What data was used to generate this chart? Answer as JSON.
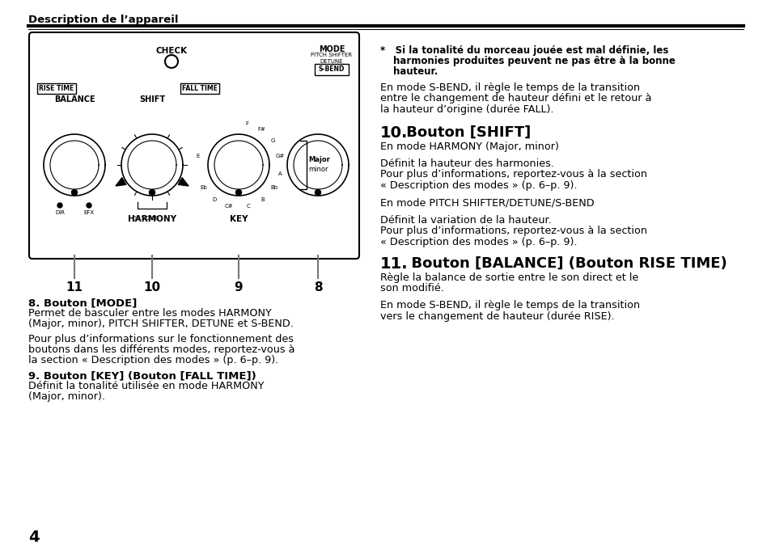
{
  "page_bg": "#ffffff",
  "text_color": "#000000",
  "header_text": "Description de l’appareil",
  "note_line1": "*   Si la tonalité du morceau jouée est mal définie, les",
  "note_line2": "harmonies produites peuvent ne pas être à la bonne",
  "note_line3": "hauteur.",
  "sbend_para": [
    "En mode S-BEND, il règle le temps de la transition",
    "entre le changement de hauteur défini et le retour à",
    "la hauteur d’origine (durée FALL)."
  ],
  "sec10_head_num": "10.",
  "sec10_head_rest": " Bouton [SHIFT]",
  "sec10_body": [
    "En mode HARMONY (Major, minor)",
    "",
    "Définit la hauteur des harmonies.",
    "Pour plus d’informations, reportez-vous à la section",
    "« Description des modes » (p. 6–p. 9).",
    "",
    "En mode PITCH SHIFTER/DETUNE/S-BEND",
    "",
    "Définit la variation de la hauteur.",
    "Pour plus d’informations, reportez-vous à la section",
    "« Description des modes » (p. 6–p. 9)."
  ],
  "sec11_head_num": "11.",
  "sec11_head_rest": "  Bouton [BALANCE] (Bouton RISE TIME)",
  "sec11_body": [
    "Règle la balance de sortie entre le son direct et le",
    "son modifié.",
    "",
    "En mode S-BEND, il règle le temps de la transition",
    "vers le changement de hauteur (durée RISE)."
  ],
  "sec8_head": "8. Bouton [MODE]",
  "sec8_body": [
    "Permet de basculer entre les modes HARMONY",
    "(Major, minor), PITCH SHIFTER, DETUNE et S-BEND.",
    "",
    "Pour plus d’informations sur le fonctionnement des",
    "boutons dans les différents modes, reportez-vous à",
    "la section « Description des modes » (p. 6–p. 9)."
  ],
  "sec9_head": "9. Bouton [KEY] (Bouton [FALL TIME])",
  "sec9_body": [
    "Définit la tonalité utilisée en mode HARMONY",
    "(Major, minor)."
  ],
  "page_number": "4"
}
